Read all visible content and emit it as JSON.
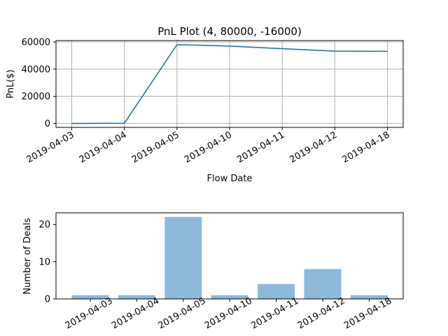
{
  "chart_data": [
    {
      "type": "line",
      "title": "PnL Plot (4, 80000, -16000)",
      "xlabel": "Flow Date",
      "ylabel": "PnL($)",
      "categories": [
        "2019-04-03",
        "2019-04-04",
        "2019-04-05",
        "2019-04-10",
        "2019-04-11",
        "2019-04-12",
        "2019-04-18"
      ],
      "series": [
        {
          "values": [
            0,
            200,
            58000,
            57000,
            55000,
            53200,
            53100
          ]
        }
      ],
      "ylim": [
        -2900,
        61000
      ],
      "yticks": [
        "0",
        "20000",
        "40000",
        "60000"
      ],
      "grid": true,
      "color": "#1f77b4"
    },
    {
      "type": "bar",
      "title": "",
      "xlabel": "",
      "ylabel": "Number of Deals",
      "categories": [
        "2019-04-03",
        "2019-04-04",
        "2019-04-05",
        "2019-04-10",
        "2019-04-11",
        "2019-04-12",
        "2019-04-18"
      ],
      "values": [
        1,
        1,
        22,
        1,
        4,
        8,
        1
      ],
      "ylim": [
        0,
        23.1
      ],
      "yticks": [
        "0",
        "10",
        "20"
      ],
      "grid": false,
      "color": "#8cb8da"
    }
  ]
}
